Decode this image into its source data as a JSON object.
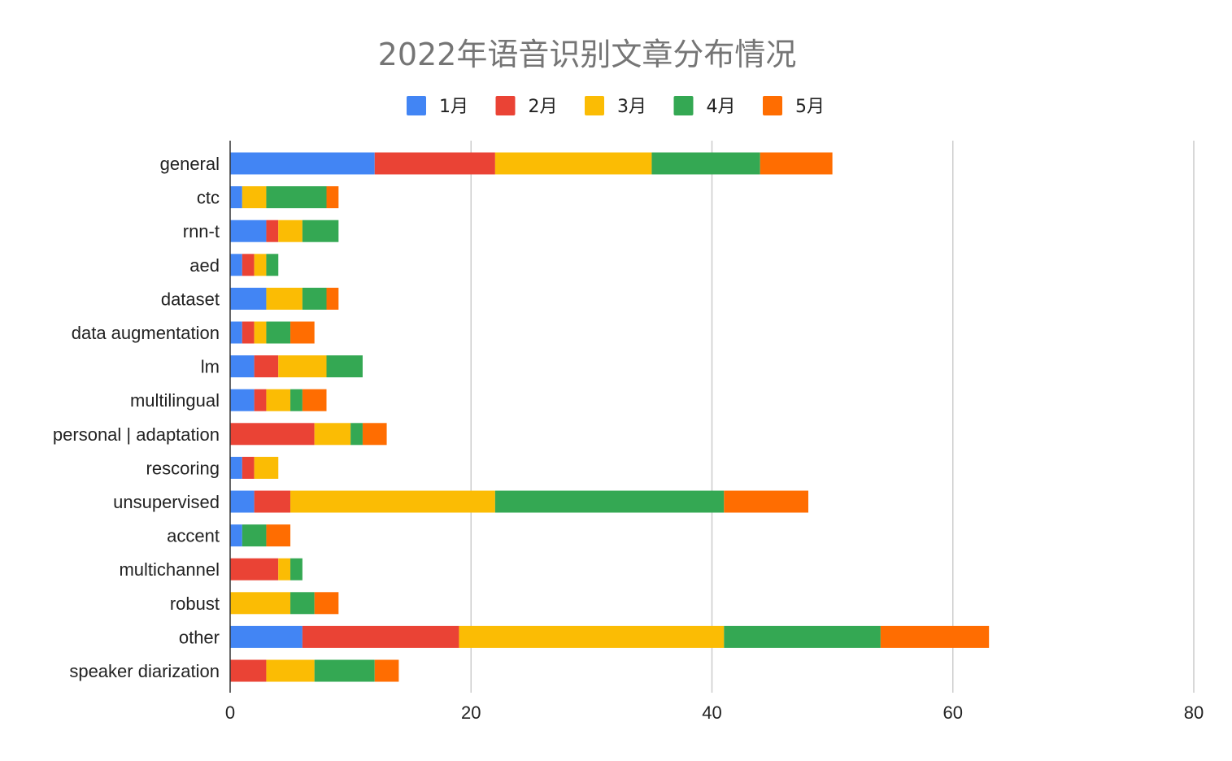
{
  "chart_data": {
    "type": "bar",
    "orientation": "horizontal",
    "stacked": true,
    "title": "2022年语音识别文章分布情况",
    "xlabel": "",
    "ylabel": "",
    "xlim": [
      0,
      80
    ],
    "x_ticks": [
      0,
      20,
      40,
      60,
      80
    ],
    "grid": true,
    "legend_position": "top",
    "categories": [
      "general",
      "ctc",
      "rnn-t",
      "aed",
      "dataset",
      "data augmentation",
      "lm",
      "multilingual",
      "personal | adaptation",
      "rescoring",
      "unsupervised",
      "accent",
      "multichannel",
      "robust",
      "other",
      "speaker diarization"
    ],
    "series": [
      {
        "name": "1月",
        "color": "#4285f4",
        "values": [
          12,
          1,
          3,
          1,
          3,
          1,
          2,
          2,
          0,
          1,
          2,
          1,
          0,
          0,
          6,
          0
        ]
      },
      {
        "name": "2月",
        "color": "#ea4335",
        "values": [
          10,
          0,
          1,
          1,
          0,
          1,
          2,
          1,
          7,
          1,
          3,
          0,
          4,
          0,
          13,
          3
        ]
      },
      {
        "name": "3月",
        "color": "#fbbc04",
        "values": [
          13,
          2,
          2,
          1,
          3,
          1,
          4,
          2,
          3,
          2,
          17,
          0,
          1,
          5,
          22,
          4
        ]
      },
      {
        "name": "4月",
        "color": "#34a853",
        "values": [
          9,
          5,
          3,
          1,
          2,
          2,
          3,
          1,
          1,
          0,
          19,
          2,
          1,
          2,
          13,
          5
        ]
      },
      {
        "name": "5月",
        "color": "#ff6d01",
        "values": [
          6,
          1,
          0,
          0,
          1,
          2,
          0,
          2,
          2,
          0,
          7,
          2,
          0,
          2,
          9,
          2
        ]
      }
    ]
  }
}
